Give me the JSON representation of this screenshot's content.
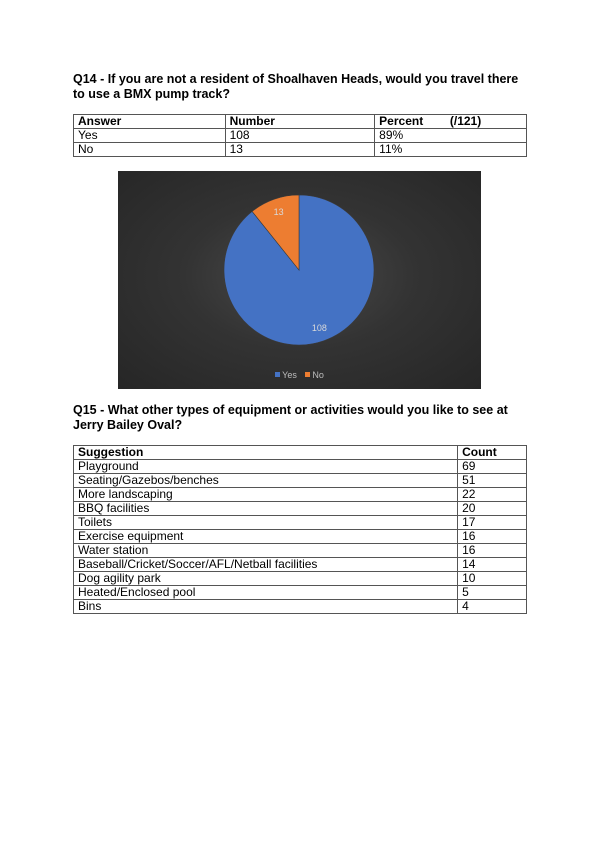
{
  "q14": {
    "title": "Q14 - If you are not a resident of Shoalhaven Heads, would you travel there to use a BMX pump track?",
    "headers": {
      "answer": "Answer",
      "number": "Number",
      "percent": "Percent        (/121)"
    },
    "rows": [
      {
        "answer": "Yes",
        "number": "108",
        "percent": "89%"
      },
      {
        "answer": "No",
        "number": "13",
        "percent": "11%"
      }
    ]
  },
  "chart_data": {
    "type": "pie",
    "categories": [
      "Yes",
      "No"
    ],
    "values": [
      108,
      13
    ],
    "data_labels": [
      "108",
      "13"
    ],
    "colors": [
      "#4472c4",
      "#ed7d31"
    ],
    "legend": [
      "Yes",
      "No"
    ],
    "legend_position": "bottom"
  },
  "q15": {
    "title": "Q15 - What other types of equipment or activities would you like to see at Jerry Bailey Oval?",
    "headers": {
      "suggestion": "Suggestion",
      "count": "Count"
    },
    "rows": [
      {
        "suggestion": "Playground",
        "count": "69"
      },
      {
        "suggestion": "Seating/Gazebos/benches",
        "count": "51"
      },
      {
        "suggestion": "More landscaping",
        "count": "22"
      },
      {
        "suggestion": "BBQ facilities",
        "count": "20"
      },
      {
        "suggestion": "Toilets",
        "count": "17"
      },
      {
        "suggestion": "Exercise equipment",
        "count": "16"
      },
      {
        "suggestion": "Water station",
        "count": "16"
      },
      {
        "suggestion": "Baseball/Cricket/Soccer/AFL/Netball facilities",
        "count": "14"
      },
      {
        "suggestion": "Dog agility park",
        "count": "10"
      },
      {
        "suggestion": "Heated/Enclosed pool",
        "count": "5"
      },
      {
        "suggestion": "Bins",
        "count": "4"
      }
    ]
  }
}
